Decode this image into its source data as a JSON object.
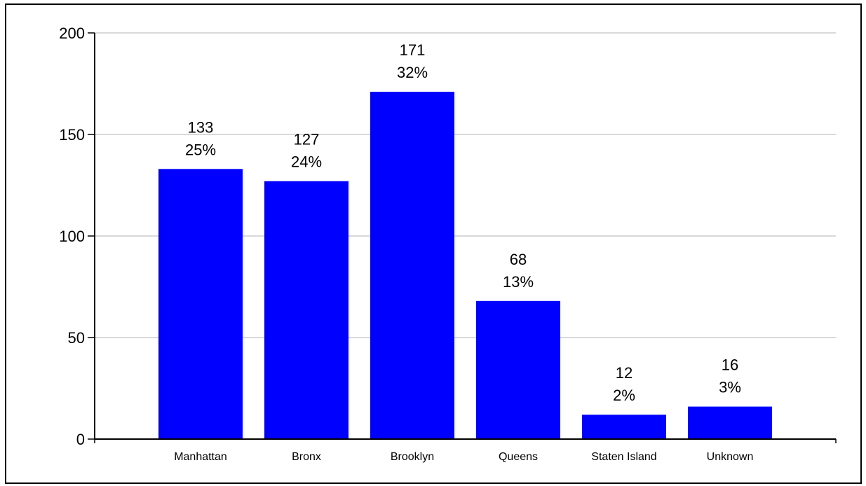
{
  "chart_data": {
    "type": "bar",
    "title": "",
    "xlabel": "",
    "ylabel": "",
    "categories": [
      "Manhattan",
      "Bronx",
      "Brooklyn",
      "Queens",
      "Staten Island",
      "Unknown"
    ],
    "values": [
      133,
      127,
      171,
      68,
      12,
      16
    ],
    "percent_labels": [
      "25%",
      "24%",
      "32%",
      "13%",
      "2%",
      "3%"
    ],
    "ylim": [
      0,
      200
    ],
    "yticks": [
      0,
      50,
      100,
      150,
      200
    ],
    "grid": true,
    "legend": "none",
    "colors": {
      "bar": "#0000ff",
      "grid": "#d9d9d9",
      "axis": "#000000",
      "text": "#000000"
    }
  }
}
